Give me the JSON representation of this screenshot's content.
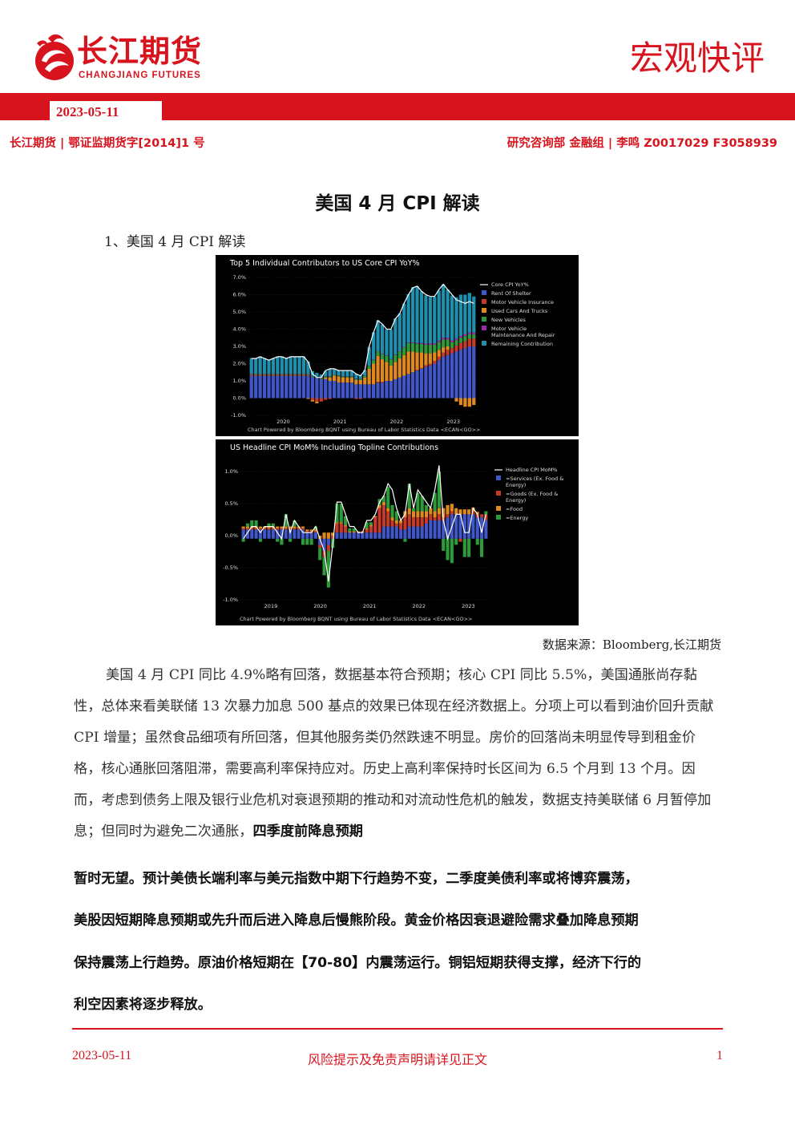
{
  "header": {
    "brand_cn": "长江期货",
    "brand_en": "CHANGJIANG FUTURES",
    "report_type": "宏观快评",
    "date": "2023-05-11",
    "meta_left": "长江期货 | 鄂证监期货字[2014]1 号",
    "meta_right": "研究咨询部  金融组 | 李鸣  Z0017029 F3058939"
  },
  "title": "美国 4 月 CPI 解读",
  "section_heading": "1、美国 4 月 CPI 解读",
  "colors": {
    "brand_red": "#d7141e",
    "series": {
      "shelter": "#3f57c9",
      "motor_insurance": "#c73a2a",
      "used_cars": "#e08a1e",
      "new_vehicles": "#2e9b3a",
      "maintenance": "#9a2aa8",
      "remaining": "#1f8fae",
      "services": "#3f57c9",
      "goods": "#c73a2a",
      "food": "#e08a1e",
      "energy": "#2e9b3a",
      "line": "#ffffff"
    }
  },
  "chart_data": [
    {
      "type": "bar",
      "stacked": true,
      "title": "Top 5 Individual Contributors to US Core CPI YoY%",
      "x_ticks": [
        "2020",
        "2021",
        "2022",
        "2023"
      ],
      "y_ticks": [
        "7.0%",
        "6.0%",
        "5.0%",
        "4.0%",
        "3.0%",
        "2.0%",
        "1.0%",
        "0.0%",
        "-1.0%"
      ],
      "ylim": [
        -1.0,
        7.0
      ],
      "note": "Chart Powered by Bloomberg BQNT using Bureau of Labor Statistics Data    <ECAN<GO>>",
      "legend_position": "top-right",
      "legend": [
        "Core CPI YoY%",
        "Rent Of Shelter",
        "Motor Vehicle Insurance",
        "Used Cars And Trucks",
        "New Vehicles",
        "Motor Vehicle Maintenance And Repair",
        "Remaining Contribution"
      ],
      "line": {
        "name": "Core CPI YoY%",
        "values": [
          2.3,
          2.3,
          2.4,
          2.3,
          2.2,
          2.3,
          2.4,
          2.4,
          2.3,
          2.4,
          2.4,
          2.4,
          2.4,
          2.1,
          1.4,
          1.2,
          1.2,
          1.6,
          1.7,
          1.7,
          1.6,
          1.6,
          1.6,
          1.6,
          1.4,
          1.3,
          1.6,
          3.0,
          3.8,
          4.5,
          4.3,
          4.0,
          4.0,
          4.6,
          4.9,
          5.5,
          6.0,
          6.4,
          6.5,
          6.2,
          6.0,
          5.9,
          5.9,
          6.3,
          6.6,
          6.3,
          6.0,
          5.7,
          5.6,
          5.5,
          5.6,
          5.5
        ]
      },
      "series": [
        {
          "name": "Rent Of Shelter",
          "values": [
            1.3,
            1.3,
            1.3,
            1.3,
            1.3,
            1.3,
            1.3,
            1.3,
            1.3,
            1.3,
            1.3,
            1.3,
            1.3,
            1.3,
            1.2,
            1.2,
            1.1,
            1.1,
            1.0,
            1.0,
            0.9,
            0.9,
            0.9,
            0.9,
            0.8,
            0.8,
            0.8,
            0.8,
            0.8,
            0.9,
            0.9,
            1.0,
            1.0,
            1.1,
            1.2,
            1.3,
            1.4,
            1.5,
            1.6,
            1.7,
            1.8,
            1.9,
            2.0,
            2.2,
            2.4,
            2.5,
            2.6,
            2.7,
            2.8,
            2.9,
            3.0,
            3.0
          ]
        },
        {
          "name": "Motor Vehicle Insurance",
          "values": [
            0.05,
            0.05,
            0.05,
            0.05,
            0.05,
            0.05,
            0.05,
            0.05,
            0.05,
            0.05,
            0.05,
            0.05,
            0.05,
            0.05,
            -0.1,
            -0.2,
            -0.2,
            -0.1,
            -0.05,
            0.0,
            0.0,
            0.0,
            0.0,
            0.0,
            -0.05,
            -0.05,
            0.0,
            0.0,
            0.0,
            0.05,
            0.05,
            0.0,
            0.0,
            0.0,
            0.0,
            0.0,
            0.0,
            0.0,
            0.05,
            0.05,
            0.1,
            0.1,
            0.15,
            0.2,
            0.25,
            0.3,
            0.3,
            0.35,
            0.4,
            0.4,
            0.45,
            0.45
          ]
        },
        {
          "name": "Used Cars And Trucks",
          "values": [
            0.0,
            0.0,
            0.0,
            0.0,
            0.0,
            0.0,
            0.0,
            0.0,
            0.0,
            0.0,
            0.0,
            0.0,
            0.0,
            -0.05,
            -0.1,
            -0.1,
            0.0,
            0.1,
            0.2,
            0.3,
            0.35,
            0.3,
            0.3,
            0.3,
            0.25,
            0.25,
            0.4,
            0.9,
            1.2,
            1.5,
            1.3,
            1.1,
            0.9,
            1.0,
            1.1,
            1.2,
            1.3,
            1.2,
            1.0,
            0.9,
            0.7,
            0.6,
            0.5,
            0.4,
            0.3,
            0.2,
            0.0,
            -0.2,
            -0.4,
            -0.5,
            -0.5,
            -0.4
          ]
        },
        {
          "name": "New Vehicles",
          "values": [
            0.05,
            0.05,
            0.05,
            0.05,
            0.05,
            0.05,
            0.05,
            0.05,
            0.05,
            0.05,
            0.05,
            0.05,
            0.05,
            0.05,
            0.05,
            0.05,
            0.05,
            0.05,
            0.05,
            0.05,
            0.05,
            0.05,
            0.05,
            0.05,
            0.05,
            0.05,
            0.1,
            0.15,
            0.2,
            0.25,
            0.3,
            0.35,
            0.35,
            0.4,
            0.4,
            0.45,
            0.5,
            0.5,
            0.5,
            0.5,
            0.5,
            0.5,
            0.45,
            0.45,
            0.45,
            0.4,
            0.35,
            0.3,
            0.3,
            0.3,
            0.25,
            0.25
          ]
        },
        {
          "name": "Motor Vehicle Maintenance And Repair",
          "values": [
            0.02,
            0.02,
            0.02,
            0.02,
            0.02,
            0.02,
            0.02,
            0.02,
            0.02,
            0.02,
            0.02,
            0.02,
            0.02,
            0.02,
            0.02,
            0.02,
            0.02,
            0.02,
            0.02,
            0.02,
            0.02,
            0.02,
            0.02,
            0.02,
            0.02,
            0.02,
            0.02,
            0.02,
            0.02,
            0.02,
            0.02,
            0.02,
            0.02,
            0.02,
            0.02,
            0.03,
            0.03,
            0.03,
            0.04,
            0.05,
            0.06,
            0.07,
            0.08,
            0.09,
            0.1,
            0.1,
            0.1,
            0.1,
            0.1,
            0.1,
            0.1,
            0.1
          ]
        },
        {
          "name": "Remaining Contribution",
          "values": [
            0.9,
            0.9,
            1.0,
            0.9,
            0.8,
            0.9,
            1.0,
            1.0,
            0.9,
            1.0,
            1.0,
            1.0,
            1.0,
            0.7,
            0.3,
            0.2,
            0.2,
            0.3,
            0.4,
            0.3,
            0.3,
            0.3,
            0.3,
            0.3,
            0.3,
            0.2,
            0.3,
            1.1,
            1.6,
            1.8,
            1.7,
            1.5,
            1.7,
            2.1,
            2.2,
            2.5,
            2.8,
            3.2,
            3.3,
            3.0,
            2.8,
            2.7,
            2.7,
            2.9,
            3.1,
            2.8,
            2.6,
            2.4,
            2.4,
            2.3,
            2.3,
            2.1
          ]
        }
      ]
    },
    {
      "type": "bar",
      "stacked": true,
      "title": "US Headline CPI MoM% Including Topline Contributions",
      "x_ticks": [
        "2019",
        "2020",
        "2021",
        "2022",
        "2023"
      ],
      "y_ticks": [
        "1.0%",
        "0.5%",
        "0.0%",
        "-0.5%",
        "-1.0%"
      ],
      "ylim": [
        -1.0,
        1.1
      ],
      "note": "Chart Powered by Bloomberg BQNT using Bureau of Labor Statistics Data    <ECAN<GO>>",
      "legend_position": "top-right",
      "legend": [
        "Headline CPI MoM%",
        "=Services (Ex. Food & Energy)",
        "=Goods (Ex. Food & Energy)",
        "=Food",
        "=Energy"
      ],
      "line": {
        "name": "Headline CPI MoM%",
        "values": [
          0.0,
          0.1,
          0.2,
          0.2,
          0.1,
          0.2,
          0.2,
          0.2,
          0.1,
          0.0,
          0.4,
          0.1,
          0.3,
          0.2,
          0.1,
          0.1,
          0.1,
          0.2,
          0.0,
          -0.2,
          -0.7,
          -0.1,
          0.6,
          0.6,
          0.4,
          0.2,
          0.2,
          0.1,
          0.1,
          0.3,
          0.3,
          0.4,
          0.6,
          0.7,
          0.9,
          0.8,
          0.5,
          0.3,
          0.4,
          0.9,
          0.5,
          0.8,
          0.7,
          0.6,
          0.5,
          0.8,
          1.2,
          0.3,
          0.0,
          0.2,
          0.4,
          0.4,
          0.1,
          0.1,
          0.5,
          0.4,
          0.1,
          0.4
        ]
      },
      "series": [
        {
          "name": "=Services (Ex. Food & Energy)",
          "values": [
            0.15,
            0.15,
            0.15,
            0.15,
            0.15,
            0.15,
            0.15,
            0.15,
            0.15,
            0.15,
            0.15,
            0.15,
            0.15,
            0.15,
            0.15,
            0.1,
            0.1,
            0.1,
            -0.1,
            -0.2,
            -0.1,
            0.0,
            0.1,
            0.1,
            0.1,
            0.1,
            0.1,
            0.1,
            0.1,
            0.1,
            0.1,
            0.1,
            0.1,
            0.2,
            0.2,
            0.2,
            0.2,
            0.15,
            0.15,
            0.2,
            0.2,
            0.2,
            0.2,
            0.25,
            0.3,
            0.3,
            0.3,
            0.3,
            0.35,
            0.4,
            0.4,
            0.4,
            0.4,
            0.4,
            0.4,
            0.35,
            0.35,
            0.3
          ]
        },
        {
          "name": "=Goods (Ex. Food & Energy)",
          "values": [
            0.02,
            0.02,
            0.02,
            0.02,
            0.02,
            0.02,
            0.02,
            0.02,
            0.02,
            0.02,
            0.02,
            0.02,
            0.02,
            0.02,
            0.02,
            0.02,
            0.02,
            0.02,
            -0.05,
            -0.1,
            -0.1,
            0.05,
            0.15,
            0.15,
            0.1,
            0.0,
            0.0,
            0.0,
            0.0,
            0.05,
            0.1,
            0.25,
            0.4,
            0.35,
            0.25,
            0.1,
            0.05,
            0.1,
            0.2,
            0.2,
            0.15,
            0.15,
            0.15,
            0.1,
            0.1,
            0.05,
            0.1,
            0.05,
            0.05,
            0.05,
            0.0,
            -0.05,
            0.0,
            0.0,
            0.05,
            0.05,
            0.05,
            0.1
          ]
        },
        {
          "name": "=Food",
          "values": [
            0.03,
            0.03,
            0.03,
            0.03,
            0.03,
            0.03,
            0.03,
            0.03,
            0.03,
            0.03,
            0.03,
            0.03,
            0.03,
            0.03,
            0.03,
            0.03,
            0.03,
            0.03,
            0.05,
            0.1,
            0.1,
            0.05,
            0.02,
            0.02,
            0.02,
            0.02,
            0.02,
            0.02,
            0.02,
            0.02,
            0.02,
            0.02,
            0.05,
            0.05,
            0.05,
            0.05,
            0.05,
            0.05,
            0.1,
            0.1,
            0.1,
            0.1,
            0.1,
            0.1,
            0.1,
            0.1,
            0.1,
            0.15,
            0.15,
            0.12,
            0.1,
            0.08,
            0.08,
            0.08,
            0.06,
            0.04,
            0.0,
            0.0
          ]
        },
        {
          "name": "=Energy",
          "values": [
            -0.05,
            0.05,
            0.1,
            0.1,
            -0.05,
            0.0,
            0.05,
            0.05,
            -0.05,
            -0.1,
            0.2,
            -0.05,
            0.1,
            0.0,
            -0.1,
            -0.1,
            -0.1,
            0.05,
            -0.2,
            -0.3,
            -0.6,
            -0.15,
            0.3,
            0.3,
            0.15,
            0.05,
            0.05,
            0.0,
            0.0,
            0.1,
            0.05,
            0.0,
            0.1,
            0.1,
            0.35,
            0.2,
            0.15,
            0.0,
            -0.05,
            0.4,
            0.05,
            0.3,
            0.25,
            0.1,
            0.0,
            0.3,
            0.6,
            -0.2,
            -0.35,
            -0.4,
            -0.1,
            0.0,
            -0.3,
            -0.3,
            0.0,
            -0.1,
            -0.3,
            0.05
          ]
        }
      ]
    }
  ],
  "source": "数据来源：Bloomberg,长江期货",
  "body": {
    "p1": "美国 4 月 CPI 同比 4.9%略有回落，数据基本符合预期；核心 CPI 同比 5.5%，美国通胀尚存黏性，总体来看美联储 13 次暴力加息 500 基点的效果已体现在经济数据上。分项上可以看到油价回升贡献 CPI 增量；虽然食品细项有所回落，但其他服务类仍然跌速不明显。房价的回落尚未明显传导到租金价格，核心通胀回落阻滞，需要高利率保持应对。历史上高利率保持时长区间为 6.5 个月到 13 个月。因而，考虑到债务上限及银行业危机对衰退预期的推动和对流动性危机的触发，数据支持美联储 6 月暂停加息；但同时为避免二次通胀，",
    "bold_1": "四季度前降息预期",
    "bold_2": "暂时无望。预计美债长端利率与美元指数中期下行趋势不变，二季度美债利率或将博弈震荡，",
    "bold_3": "美股因短期降息预期或先升而后进入降息后慢熊阶段。黄金价格因衰退避险需求叠加降息预期",
    "bold_4": "保持震荡上行趋势。原油价格短期在【70-80】内震荡运行。铜铝短期获得支撑，经济下行的",
    "bold_5": "利空因素将逐步释放。"
  },
  "footer": {
    "date": "2023-05-11",
    "disclaimer": "风险提示及免责声明请详见正文",
    "page": "1"
  }
}
